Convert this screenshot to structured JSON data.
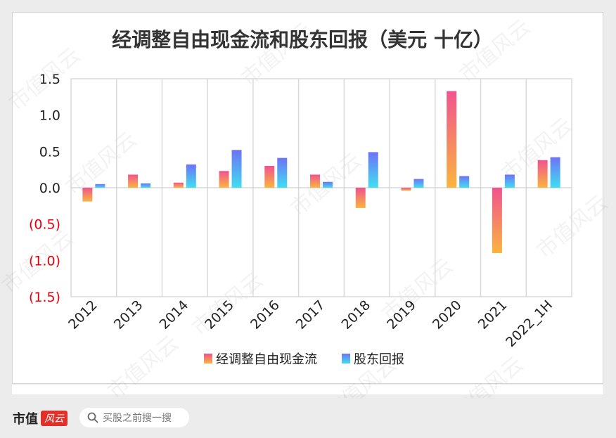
{
  "chart_data": {
    "type": "bar",
    "title": "经调整自由现金流和股东回报（美元 十亿）",
    "categories": [
      "2012",
      "2013",
      "2014",
      "2015",
      "2016",
      "2017",
      "2018",
      "2019",
      "2020",
      "2021",
      "2022_1H"
    ],
    "series": [
      {
        "name": "经调整自由现金流",
        "values": [
          -0.19,
          0.18,
          0.07,
          0.23,
          0.3,
          0.18,
          -0.28,
          -0.04,
          1.33,
          -0.9,
          0.38
        ]
      },
      {
        "name": "股东回报",
        "values": [
          0.05,
          0.06,
          0.32,
          0.52,
          0.41,
          0.08,
          0.49,
          0.12,
          0.16,
          0.18,
          0.42
        ]
      }
    ],
    "ylim": [
      -1.5,
      1.5
    ],
    "yticks": [
      1.5,
      1.0,
      0.5,
      0.0,
      -0.5,
      -1.0,
      -1.5
    ],
    "ytick_labels": [
      "1.5",
      "1.0",
      "0.5",
      "0.0",
      "(0.5)",
      "(1.0)",
      "(1.5)"
    ],
    "grid": "vertical",
    "legend_position": "bottom",
    "colors": {
      "fcf_top": "#f0538f",
      "fcf_bottom": "#fbb43e",
      "ret_top": "#6e72f6",
      "ret_bottom": "#3fdff0",
      "negative_tick": "#e8000b",
      "positive_tick": "#222222"
    }
  },
  "watermark": "市值风云",
  "footer": {
    "brand": "市值",
    "badge": "风云",
    "search_placeholder": "买股之前搜一搜"
  }
}
